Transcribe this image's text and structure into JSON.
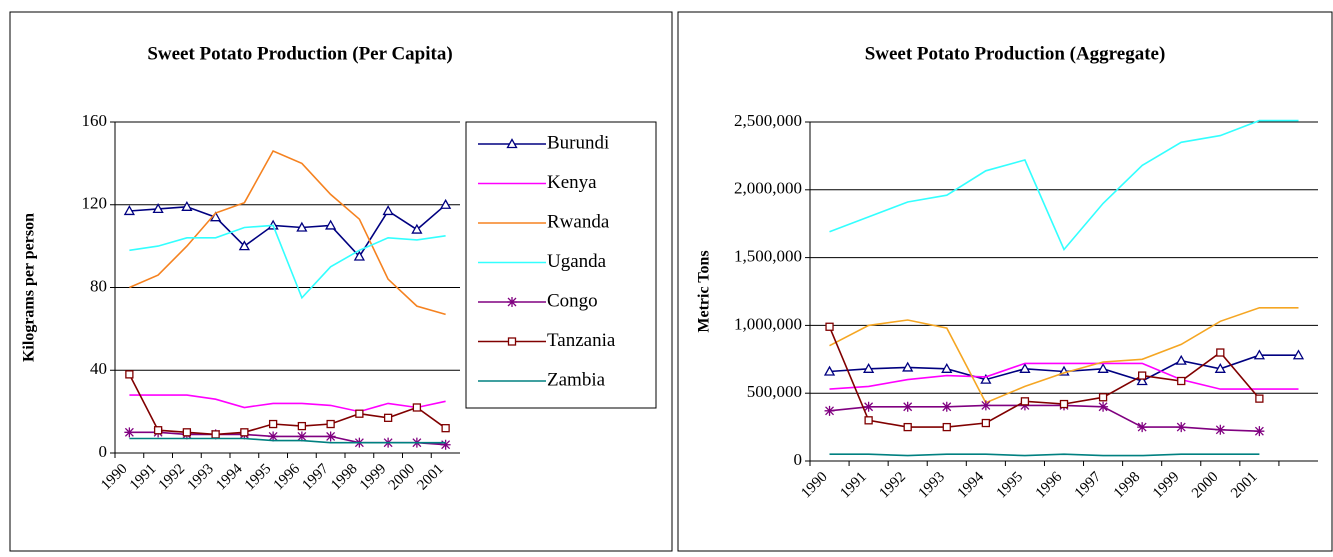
{
  "chart_data": [
    {
      "type": "line",
      "title": "Sweet Potato Production (Per Capita)",
      "y_label": "Kilograms per person",
      "categories": [
        "1990",
        "1991",
        "1992",
        "1993",
        "1994",
        "1995",
        "1996",
        "1997",
        "1998",
        "1999",
        "2000",
        "2001"
      ],
      "ylim": [
        0,
        160
      ],
      "yticks": [
        0,
        40,
        80,
        120,
        160
      ],
      "grid": true,
      "legend": "right",
      "series": [
        {
          "name": "Burundi",
          "color": "#000080",
          "marker": "triangle",
          "values": [
            117,
            118,
            119,
            114,
            100,
            110,
            109,
            110,
            95,
            117,
            108,
            120
          ]
        },
        {
          "name": "Kenya",
          "color": "#ff00ff",
          "marker": "none",
          "values": [
            28,
            28,
            28,
            26,
            22,
            24,
            24,
            23,
            20,
            24,
            22,
            25
          ]
        },
        {
          "name": "Rwanda",
          "color": "#f58220",
          "marker": "none",
          "values": [
            80,
            86,
            100,
            116,
            121,
            146,
            140,
            125,
            113,
            84,
            71,
            67
          ]
        },
        {
          "name": "Uganda",
          "color": "#33ffff",
          "marker": "none",
          "values": [
            98,
            100,
            104,
            104,
            109,
            110,
            75,
            90,
            98,
            104,
            103,
            105
          ]
        },
        {
          "name": "Congo",
          "color": "#800080",
          "marker": "star",
          "values": [
            10,
            10,
            9,
            9,
            9,
            8,
            8,
            8,
            5,
            5,
            5,
            4
          ]
        },
        {
          "name": "Tanzania",
          "color": "#800000",
          "marker": "square",
          "values": [
            38,
            11,
            10,
            9,
            10,
            14,
            13,
            14,
            19,
            17,
            22,
            12
          ]
        },
        {
          "name": "Zambia",
          "color": "#008080",
          "marker": "none",
          "values": [
            7,
            7,
            7,
            7,
            7,
            6,
            6,
            5,
            5,
            5,
            5,
            5
          ]
        }
      ]
    },
    {
      "type": "line",
      "title": "Sweet Potato Production (Aggregate)",
      "y_label": "Metric Tons",
      "categories": [
        "1990",
        "1991",
        "1992",
        "1993",
        "1994",
        "1995",
        "1996",
        "1997",
        "1998",
        "1999",
        "2000",
        "2001",
        null
      ],
      "ylim": [
        0,
        2500000
      ],
      "yticks": [
        0,
        {
          "value": 500000,
          "label": "500,000"
        },
        {
          "value": 1000000,
          "label": "1,000,000"
        },
        {
          "value": 1500000,
          "label": "1,500,000"
        },
        {
          "value": 2000000,
          "label": "2,000,000"
        },
        {
          "value": 2500000,
          "label": "2,500,000"
        }
      ],
      "grid": true,
      "series": [
        {
          "name": "Burundi",
          "color": "#000080",
          "marker": "triangle",
          "values": [
            660000,
            680000,
            690000,
            680000,
            600000,
            680000,
            660000,
            680000,
            590000,
            740000,
            680000,
            780000,
            780000
          ]
        },
        {
          "name": "Kenya",
          "color": "#ff00ff",
          "marker": "none",
          "values": [
            530000,
            550000,
            600000,
            630000,
            620000,
            720000,
            720000,
            720000,
            720000,
            600000,
            530000,
            530000,
            530000
          ]
        },
        {
          "name": "Rwanda",
          "color": "#f5a623",
          "marker": "none",
          "values": [
            850000,
            1000000,
            1040000,
            980000,
            430000,
            550000,
            650000,
            730000,
            750000,
            860000,
            1030000,
            1130000,
            1130000
          ]
        },
        {
          "name": "Uganda",
          "color": "#33ffff",
          "marker": "none",
          "values": [
            1690000,
            1800000,
            1910000,
            1960000,
            2140000,
            2220000,
            1560000,
            1900000,
            2180000,
            2350000,
            2400000,
            2510000,
            2510000
          ]
        },
        {
          "name": "Congo",
          "color": "#800080",
          "marker": "star",
          "values": [
            370000,
            400000,
            400000,
            400000,
            410000,
            410000,
            410000,
            400000,
            250000,
            250000,
            230000,
            220000,
            null
          ]
        },
        {
          "name": "Tanzania",
          "color": "#800000",
          "marker": "square",
          "values": [
            990000,
            300000,
            250000,
            250000,
            280000,
            440000,
            420000,
            470000,
            630000,
            590000,
            800000,
            460000,
            null
          ]
        },
        {
          "name": "Zambia",
          "color": "#008080",
          "marker": "none",
          "values": [
            50000,
            50000,
            40000,
            50000,
            50000,
            40000,
            50000,
            40000,
            40000,
            50000,
            50000,
            50000,
            null
          ]
        }
      ]
    }
  ]
}
